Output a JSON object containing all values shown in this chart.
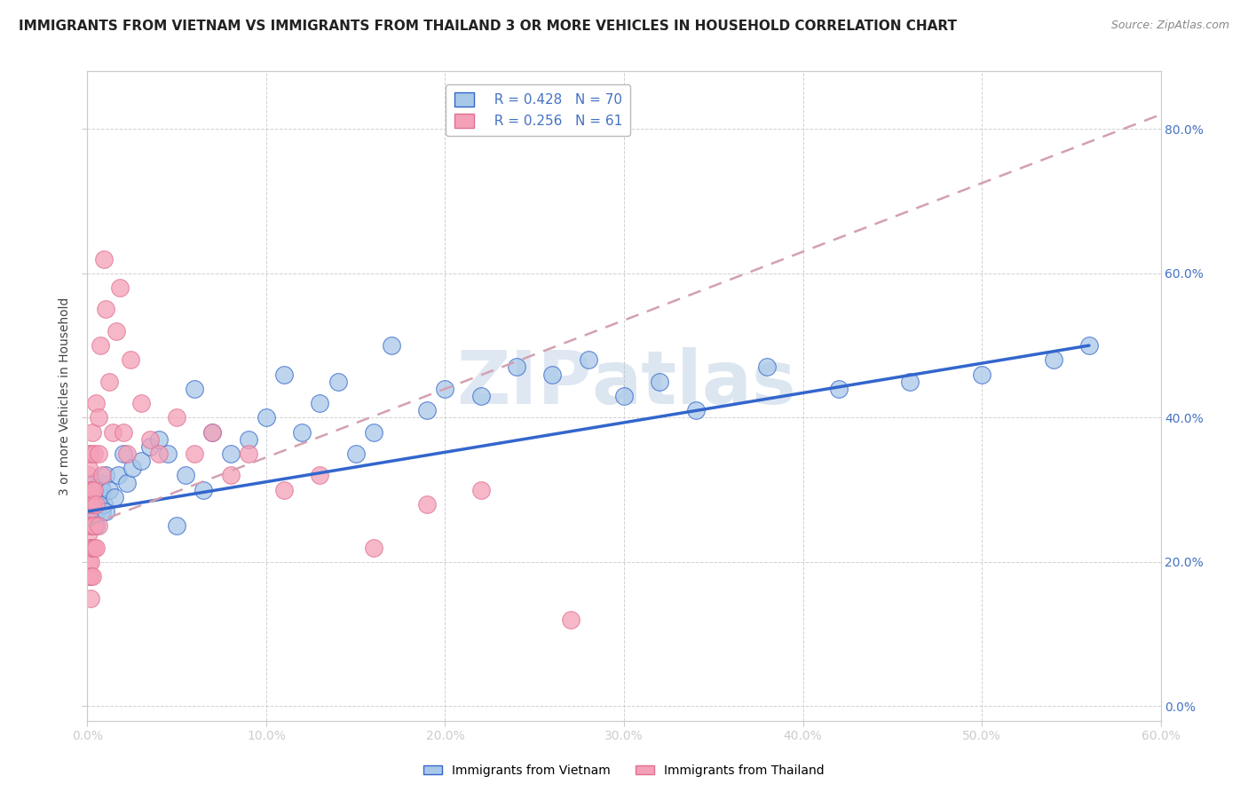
{
  "title": "IMMIGRANTS FROM VIETNAM VS IMMIGRANTS FROM THAILAND 3 OR MORE VEHICLES IN HOUSEHOLD CORRELATION CHART",
  "source": "Source: ZipAtlas.com",
  "ylabel": "3 or more Vehicles in Household",
  "xlim": [
    0,
    0.6
  ],
  "ylim": [
    -0.02,
    0.88
  ],
  "xticks": [
    0.0,
    0.1,
    0.2,
    0.3,
    0.4,
    0.5,
    0.6
  ],
  "yticks": [
    0.0,
    0.2,
    0.4,
    0.6,
    0.8
  ],
  "legend_r1": "R = 0.428",
  "legend_n1": "N = 70",
  "legend_r2": "R = 0.256",
  "legend_n2": "N = 61",
  "color_vietnam": "#a8c8e8",
  "color_thailand": "#f4a0b8",
  "color_trend_vietnam": "#3366cc",
  "color_trend_thailand": "#c0c0c0",
  "color_axis_labels": "#4472c4",
  "watermark": "ZIPAtlas",
  "background_color": "#ffffff",
  "grid_color": "#cccccc",
  "title_fontsize": 11,
  "axis_label_fontsize": 10,
  "tick_fontsize": 10,
  "legend_fontsize": 11,
  "vietnam_x": [
    0.001,
    0.001,
    0.002,
    0.002,
    0.002,
    0.002,
    0.002,
    0.003,
    0.003,
    0.003,
    0.003,
    0.003,
    0.003,
    0.004,
    0.004,
    0.004,
    0.004,
    0.005,
    0.005,
    0.005,
    0.005,
    0.006,
    0.006,
    0.007,
    0.007,
    0.008,
    0.008,
    0.009,
    0.01,
    0.01,
    0.012,
    0.015,
    0.017,
    0.02,
    0.022,
    0.025,
    0.03,
    0.035,
    0.04,
    0.045,
    0.05,
    0.055,
    0.06,
    0.065,
    0.07,
    0.08,
    0.09,
    0.1,
    0.11,
    0.12,
    0.13,
    0.14,
    0.15,
    0.16,
    0.17,
    0.19,
    0.2,
    0.22,
    0.24,
    0.26,
    0.28,
    0.3,
    0.32,
    0.34,
    0.38,
    0.42,
    0.46,
    0.5,
    0.54,
    0.56
  ],
  "vietnam_y": [
    0.28,
    0.3,
    0.26,
    0.27,
    0.29,
    0.31,
    0.25,
    0.28,
    0.27,
    0.29,
    0.3,
    0.26,
    0.28,
    0.29,
    0.27,
    0.31,
    0.28,
    0.3,
    0.27,
    0.29,
    0.25,
    0.3,
    0.28,
    0.29,
    0.31,
    0.27,
    0.3,
    0.28,
    0.32,
    0.27,
    0.3,
    0.29,
    0.32,
    0.35,
    0.31,
    0.33,
    0.34,
    0.36,
    0.37,
    0.35,
    0.25,
    0.32,
    0.44,
    0.3,
    0.38,
    0.35,
    0.37,
    0.4,
    0.46,
    0.38,
    0.42,
    0.45,
    0.35,
    0.38,
    0.5,
    0.41,
    0.44,
    0.43,
    0.47,
    0.46,
    0.48,
    0.43,
    0.45,
    0.41,
    0.47,
    0.44,
    0.45,
    0.46,
    0.48,
    0.5
  ],
  "thailand_x": [
    0.001,
    0.001,
    0.001,
    0.001,
    0.001,
    0.001,
    0.001,
    0.001,
    0.001,
    0.001,
    0.001,
    0.002,
    0.002,
    0.002,
    0.002,
    0.002,
    0.002,
    0.002,
    0.002,
    0.002,
    0.003,
    0.003,
    0.003,
    0.003,
    0.003,
    0.003,
    0.004,
    0.004,
    0.004,
    0.004,
    0.005,
    0.005,
    0.005,
    0.006,
    0.006,
    0.006,
    0.007,
    0.008,
    0.009,
    0.01,
    0.012,
    0.014,
    0.016,
    0.018,
    0.02,
    0.022,
    0.024,
    0.03,
    0.035,
    0.04,
    0.05,
    0.06,
    0.07,
    0.08,
    0.09,
    0.11,
    0.13,
    0.16,
    0.19,
    0.22,
    0.27
  ],
  "thailand_y": [
    0.28,
    0.3,
    0.22,
    0.32,
    0.25,
    0.2,
    0.35,
    0.18,
    0.27,
    0.24,
    0.33,
    0.28,
    0.22,
    0.35,
    0.3,
    0.15,
    0.25,
    0.2,
    0.28,
    0.18,
    0.22,
    0.3,
    0.25,
    0.38,
    0.18,
    0.28,
    0.25,
    0.35,
    0.22,
    0.3,
    0.28,
    0.42,
    0.22,
    0.35,
    0.25,
    0.4,
    0.5,
    0.32,
    0.62,
    0.55,
    0.45,
    0.38,
    0.52,
    0.58,
    0.38,
    0.35,
    0.48,
    0.42,
    0.37,
    0.35,
    0.4,
    0.35,
    0.38,
    0.32,
    0.35,
    0.3,
    0.32,
    0.22,
    0.28,
    0.3,
    0.12
  ],
  "viet_trend_x0": 0.0,
  "viet_trend_y0": 0.27,
  "viet_trend_x1": 0.56,
  "viet_trend_y1": 0.5,
  "thai_trend_x0": 0.0,
  "thai_trend_y0": 0.25,
  "thai_trend_x1": 0.6,
  "thai_trend_y1": 0.82
}
